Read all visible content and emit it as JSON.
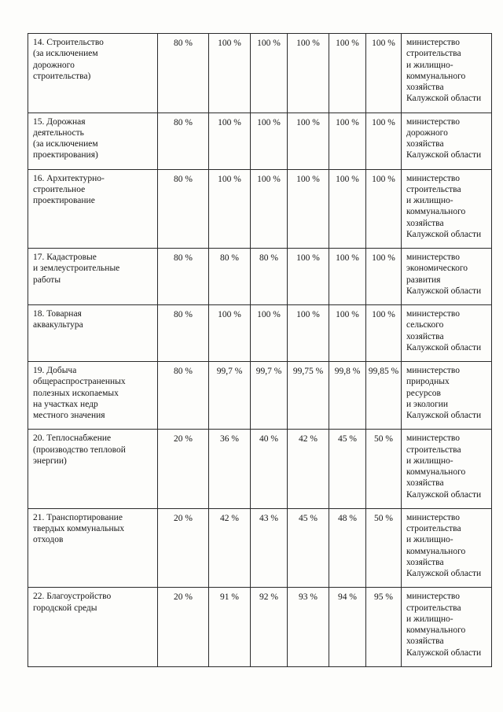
{
  "document": {
    "rows": [
      {
        "label": "14. Строительство\n(за исключением\nдорожного\nстроительства)",
        "values": [
          "80 %",
          "100 %",
          "100 %",
          "100 %",
          "100 %",
          "100 %"
        ],
        "ministry": "министерство\nстроительства\nи жилищно-\nкоммунального\nхозяйства\nКалужской области"
      },
      {
        "label": "15. Дорожная\nдеятельность\n(за исключением\nпроектирования)",
        "values": [
          "80 %",
          "100 %",
          "100 %",
          "100 %",
          "100 %",
          "100 %"
        ],
        "ministry": "министерство\nдорожного\nхозяйства\nКалужской области"
      },
      {
        "label": "16. Архитектурно-\nстроительное\nпроектирование",
        "values": [
          "80 %",
          "100 %",
          "100 %",
          "100 %",
          "100 %",
          "100 %"
        ],
        "ministry": "министерство\nстроительства\nи жилищно-\nкоммунального\nхозяйства\nКалужской области"
      },
      {
        "label": "17. Кадастровые\nи землеустроительные\nработы",
        "values": [
          "80 %",
          "80 %",
          "80 %",
          "100 %",
          "100 %",
          "100 %"
        ],
        "ministry": "министерство\nэкономического\nразвития\nКалужской области"
      },
      {
        "label": "18. Товарная\nаквакультура",
        "values": [
          "80 %",
          "100 %",
          "100 %",
          "100 %",
          "100 %",
          "100 %"
        ],
        "ministry": "министерство\nсельского\nхозяйства\nКалужской области"
      },
      {
        "label": "19. Добыча\nобщераспространенных\nполезных ископаемых\nна участках недр\nместного значения",
        "values": [
          "80 %",
          "99,7 %",
          "99,7 %",
          "99,75 %",
          "99,8 %",
          "99,85 %"
        ],
        "ministry": "министерство\nприродных\nресурсов\nи экологии\nКалужской области"
      },
      {
        "label": "20. Теплоснабжение\n(производство тепловой\nэнергии)",
        "values": [
          "20 %",
          "36 %",
          "40 %",
          "42 %",
          "45 %",
          "50 %"
        ],
        "ministry": "министерство\nстроительства\nи жилищно-\nкоммунального\nхозяйства\nКалужской области"
      },
      {
        "label": "21. Транспортирование\nтвердых коммунальных\nотходов",
        "values": [
          "20 %",
          "42 %",
          "43 %",
          "45 %",
          "48 %",
          "50 %"
        ],
        "ministry": "министерство\nстроительства\nи жилищно-\nкоммунального\nхозяйства\nКалужской области"
      },
      {
        "label": "22. Благоустройство\nгородской среды",
        "values": [
          "20 %",
          "91 %",
          "92 %",
          "93 %",
          "94 %",
          "95 %"
        ],
        "ministry": "министерство\nстроительства\nи жилищно-\nкоммунального\nхозяйства\nКалужской области"
      }
    ]
  }
}
